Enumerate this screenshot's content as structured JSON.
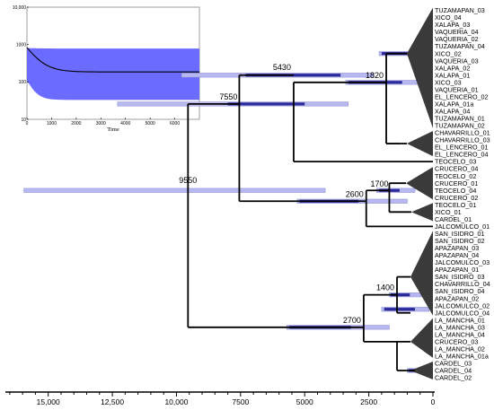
{
  "tips": [
    "TUZAMAPAN_03",
    "XICO_04",
    "XALAPA_03",
    "VAQUERIA_04",
    "VAQUERIA_02",
    "TUZAMAPAN_04",
    "XICO_02",
    "VAQUERIA_03",
    "XALAPA_02",
    "XALAPA_01",
    "XICO_03",
    "VAQUERIA_01",
    "EL_LENCERO_02",
    "XALAPA_01a",
    "XALAPA_04",
    "TUZAMAPAN_01",
    "TUZAMAPAN_02",
    "CHAVARRILLO_01",
    "CHAVARRILLO_03",
    "EL_LENCERO_01",
    "EL_LENCERO_04",
    "TEOCELO_03",
    "CRUCERO_04",
    "TEOCELO_02",
    "CRUCERO_01",
    "TEOCELO_04",
    "CRUCERO_02",
    "TEOCELO_01",
    "XICO_01",
    "CARDEL_01",
    "JALCOMULCO_01",
    "SAN_ISIDRO_01",
    "SAN_ISIDRO_02",
    "APAZAPAN_03",
    "APAZAPAN_04",
    "JALCOMULCO_03",
    "APAZAPAN_01",
    "SAN_ISIDRO_03",
    "CHAVARRILLO_04",
    "SAN_ISIDRO_04",
    "APAZAPAN_02",
    "JALCOMULCO_02",
    "JALCOMULCO_04",
    "LA_MANCHA_01",
    "LA_MANCHA_03",
    "LA_MANCHA_04",
    "CRUCERO_03",
    "LA_MANCHA_02",
    "LA_MANCHA_01a",
    "CARDEL_03",
    "CARDEL_04",
    "CARDEL_02"
  ],
  "node_ages": {
    "root": "9550",
    "left_clade": "7550",
    "upper_clade": "5430",
    "north_clade": "1820",
    "mid_clade": "2600",
    "crucero_clade": "1700",
    "south_clade": "2700",
    "jalcomulco_clade": "1400"
  },
  "time_axis": {
    "ticks": [
      15000,
      12500,
      10000,
      7500,
      5000,
      2500,
      0
    ],
    "tick_labels": [
      "15,000",
      "12,500",
      "10,000",
      "7500",
      "5000",
      "2500",
      "0"
    ],
    "range": [
      16000,
      0
    ]
  },
  "inset": {
    "xlabel": "Time",
    "x_ticks": [
      "0",
      "1000",
      "2000",
      "3000",
      "4000",
      "5000",
      "6000"
    ],
    "y_ticks": [
      "10,000",
      "1000",
      "100",
      "10"
    ],
    "log_scale": true,
    "xlim": [
      0,
      7000
    ],
    "ylim": [
      10,
      10000
    ],
    "band_color": "#6b6bff",
    "line_color": "#000000"
  },
  "colors": {
    "branch": "#000000",
    "hpd_bar": "#b8b8f0",
    "hpd_bar_border": "#8a8ad0",
    "hpd_inner": "#2a2a9a",
    "collapsed_clade": "#3a3a3a"
  }
}
